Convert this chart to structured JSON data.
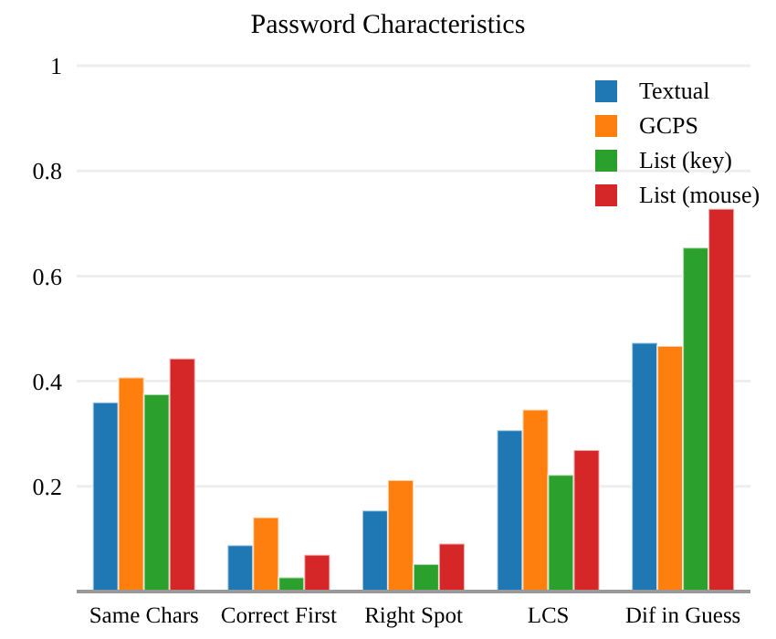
{
  "chart_data": {
    "type": "bar",
    "title": "Password Characteristics",
    "categories": [
      "Same Chars",
      "Correct First",
      "Right Spot",
      "LCS",
      "Dif in Guess"
    ],
    "series": [
      {
        "name": "Textual",
        "color": "#1f77b4",
        "values": [
          0.36,
          0.088,
          0.154,
          0.307,
          0.473
        ]
      },
      {
        "name": "GCPS",
        "color": "#ff7f0e",
        "values": [
          0.407,
          0.141,
          0.212,
          0.346,
          0.467
        ]
      },
      {
        "name": "List (key)",
        "color": "#2ca02c",
        "values": [
          0.375,
          0.027,
          0.052,
          0.222,
          0.654
        ]
      },
      {
        "name": "List (mouse)",
        "color": "#d62728",
        "values": [
          0.443,
          0.07,
          0.091,
          0.269,
          0.728
        ]
      }
    ],
    "ylim": [
      0,
      1
    ],
    "yticks": [
      0.2,
      0.4,
      0.6,
      0.8,
      1
    ],
    "grid": "y",
    "legend": "top right"
  }
}
